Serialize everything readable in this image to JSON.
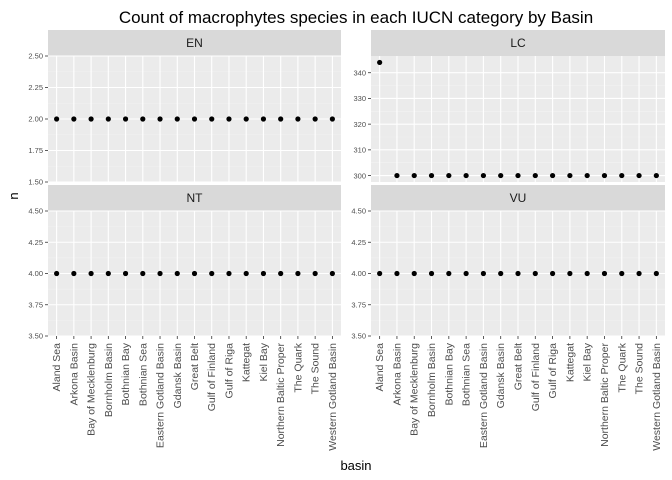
{
  "chart_data": {
    "type": "scatter",
    "title": "Count of macrophytes species in each IUCN category by Basin",
    "xlabel": "basin",
    "ylabel": "n",
    "categories": [
      "Aland Sea",
      "Arkona Basin",
      "Bay of Mecklenburg",
      "Bornholm Basin",
      "Bothnian Bay",
      "Bothnian Sea",
      "Eastern Gotland Basin",
      "Gdansk Basin",
      "Great Belt",
      "Gulf of Finland",
      "Gulf of Riga",
      "Kattegat",
      "Kiel Bay",
      "Northern Baltic Proper",
      "The Quark",
      "The Sound",
      "Western Gotland Basin"
    ],
    "grid": true,
    "facets": [
      {
        "name": "EN",
        "values": [
          2,
          2,
          2,
          2,
          2,
          2,
          2,
          2,
          2,
          2,
          2,
          2,
          2,
          2,
          2,
          2,
          2
        ],
        "ylim": [
          1.5,
          2.5
        ],
        "yticks": [
          1.5,
          1.75,
          2.0,
          2.25,
          2.5
        ],
        "ytick_labels": [
          "1.50",
          "1.75",
          "2.00",
          "2.25",
          "2.50"
        ]
      },
      {
        "name": "LC",
        "values": [
          344,
          300,
          300,
          300,
          300,
          300,
          300,
          300,
          300,
          300,
          300,
          300,
          300,
          300,
          300,
          300,
          300
        ],
        "ylim": [
          297.5,
          346.5
        ],
        "yticks": [
          300,
          310,
          320,
          330,
          340
        ],
        "ytick_labels": [
          "300",
          "310",
          "320",
          "330",
          "340"
        ]
      },
      {
        "name": "NT",
        "values": [
          4,
          4,
          4,
          4,
          4,
          4,
          4,
          4,
          4,
          4,
          4,
          4,
          4,
          4,
          4,
          4,
          4
        ],
        "ylim": [
          3.5,
          4.5
        ],
        "yticks": [
          3.5,
          3.75,
          4.0,
          4.25,
          4.5
        ],
        "ytick_labels": [
          "3.50",
          "3.75",
          "4.00",
          "4.25",
          "4.50"
        ]
      },
      {
        "name": "VU",
        "values": [
          4,
          4,
          4,
          4,
          4,
          4,
          4,
          4,
          4,
          4,
          4,
          4,
          4,
          4,
          4,
          4,
          4
        ],
        "ylim": [
          3.5,
          4.5
        ],
        "yticks": [
          3.5,
          3.75,
          4.0,
          4.25,
          4.5
        ],
        "ytick_labels": [
          "3.50",
          "3.75",
          "4.00",
          "4.25",
          "4.50"
        ]
      }
    ],
    "colors": {
      "panel_bg": "#ebebeb",
      "strip_bg": "#d9d9d9",
      "grid_major": "#ffffff",
      "grid_minor": "#f2f2f2",
      "point": "#000000"
    }
  }
}
